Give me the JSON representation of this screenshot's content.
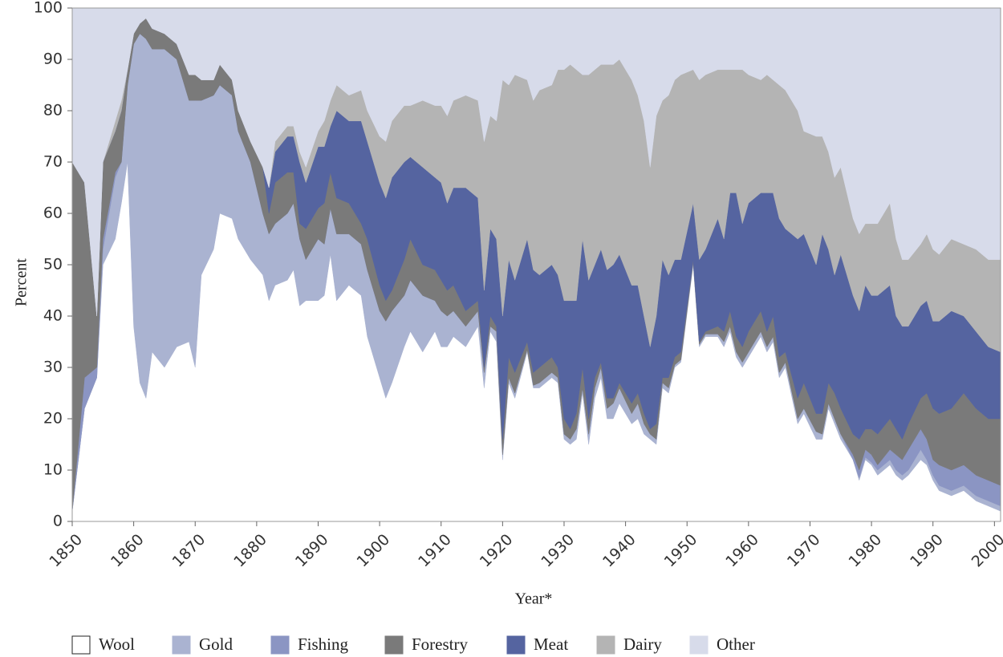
{
  "chart_data": {
    "type": "stacked_area",
    "x_label": "Year*",
    "y_label": "Percent",
    "x": [
      1850,
      1852,
      1854,
      1855,
      1857,
      1858,
      1859,
      1860,
      1861,
      1862,
      1863,
      1865,
      1867,
      1869,
      1870,
      1871,
      1873,
      1874,
      1876,
      1877,
      1879,
      1881,
      1882,
      1883,
      1885,
      1886,
      1887,
      1888,
      1890,
      1891,
      1892,
      1893,
      1895,
      1897,
      1898,
      1900,
      1901,
      1902,
      1904,
      1905,
      1907,
      1909,
      1910,
      1911,
      1912,
      1914,
      1916,
      1917,
      1918,
      1919,
      1920,
      1921,
      1922,
      1924,
      1925,
      1926,
      1928,
      1929,
      1930,
      1931,
      1932,
      1933,
      1934,
      1935,
      1936,
      1937,
      1938,
      1939,
      1941,
      1942,
      1943,
      1944,
      1945,
      1946,
      1947,
      1948,
      1949,
      1951,
      1952,
      1953,
      1955,
      1956,
      1957,
      1958,
      1959,
      1960,
      1962,
      1963,
      1964,
      1965,
      1966,
      1968,
      1969,
      1971,
      1972,
      1973,
      1974,
      1975,
      1977,
      1978,
      1979,
      1980,
      1981,
      1983,
      1984,
      1985,
      1986,
      1988,
      1989,
      1990,
      1991,
      1993,
      1995,
      1997,
      1999,
      2001
    ],
    "series": [
      {
        "name": "Wool",
        "color": "#ffffff",
        "values": [
          2,
          22,
          28,
          50,
          55,
          62,
          70,
          38,
          27,
          24,
          33,
          30,
          34,
          35,
          30,
          48,
          53,
          60,
          59,
          55,
          51,
          48,
          43,
          46,
          47,
          49,
          42,
          43,
          43,
          44,
          52,
          43,
          46,
          44,
          36,
          28,
          24,
          27,
          34,
          37,
          33,
          37,
          34,
          34,
          36,
          34,
          38,
          26,
          37,
          35,
          12,
          27,
          24,
          33,
          26,
          26,
          28,
          27,
          16,
          15,
          16,
          25,
          15,
          24,
          28,
          20,
          20,
          23,
          19,
          20,
          17,
          16,
          15,
          26,
          25,
          30,
          31,
          50,
          34,
          36,
          36,
          34,
          37,
          32,
          30,
          32,
          36,
          33,
          35,
          28,
          30,
          19,
          21,
          16,
          16,
          22,
          19,
          16,
          12,
          8,
          12,
          11,
          9,
          11,
          9,
          8,
          9,
          12,
          11,
          8,
          6,
          5,
          6,
          4,
          3,
          2
        ]
      },
      {
        "name": "Gold",
        "color": "#aab3d1",
        "values": [
          0,
          0,
          0,
          3,
          12,
          8,
          15,
          55,
          68,
          70,
          59,
          62,
          56,
          47,
          52,
          34,
          30,
          25,
          24,
          21,
          19,
          12,
          13,
          12,
          13,
          13,
          13,
          8,
          12,
          10,
          9,
          13,
          10,
          10,
          13,
          13,
          15,
          14,
          10,
          10,
          11,
          6,
          7,
          6,
          5,
          4,
          3,
          3,
          1,
          2,
          1,
          1,
          1,
          0.5,
          0.5,
          1,
          1,
          1,
          1,
          1,
          2,
          1,
          2,
          2,
          2,
          2,
          3,
          3,
          2,
          3,
          2,
          1,
          1,
          1,
          1,
          0.5,
          0.5,
          0.5,
          0.5,
          0.5,
          0.5,
          1,
          1,
          1,
          1,
          1,
          1,
          1,
          1,
          1,
          1,
          1,
          1,
          1.5,
          1,
          1,
          1,
          1,
          0,
          0.5,
          0.5,
          0.5,
          1,
          1,
          1,
          1,
          1,
          2,
          1,
          1,
          1,
          1,
          1,
          1,
          1,
          1
        ]
      },
      {
        "name": "Fishing",
        "color": "#8b95c3",
        "values": [
          0,
          6,
          2,
          2,
          1,
          0,
          0,
          0,
          0,
          0,
          0,
          0,
          0,
          0,
          0,
          0,
          0,
          0,
          0,
          0,
          0,
          0,
          0,
          0,
          0,
          0,
          0,
          0,
          0,
          0,
          0,
          0,
          0,
          0,
          0,
          0,
          0,
          0,
          0,
          0,
          0,
          0,
          0,
          0,
          0,
          0,
          0,
          0,
          0,
          0,
          0,
          0,
          0,
          0,
          0,
          0,
          0,
          0,
          0,
          0,
          0,
          0,
          0,
          0,
          0,
          0,
          0,
          0,
          0,
          0,
          0,
          0,
          0,
          0,
          0,
          0,
          0,
          0,
          0,
          0,
          0,
          0,
          0,
          0,
          0,
          0,
          0,
          0,
          0,
          0,
          0,
          0,
          0,
          0,
          0,
          0,
          0,
          0,
          1,
          1.5,
          1.5,
          1.5,
          1,
          2,
          3,
          3,
          4,
          4,
          4,
          3,
          4,
          4,
          4,
          4,
          4,
          4
        ]
      },
      {
        "name": "Forestry",
        "color": "#7a7a7a",
        "values": [
          68,
          38,
          10,
          15,
          8,
          10,
          3,
          2,
          2,
          4,
          4,
          3,
          3,
          5,
          5,
          4,
          3,
          4,
          3,
          4,
          4,
          9,
          4,
          8,
          8,
          6,
          3,
          6,
          6,
          8,
          7,
          7,
          6,
          4,
          6,
          5,
          4,
          4,
          7,
          8,
          6,
          6,
          6,
          5,
          5,
          3,
          2,
          1,
          2,
          1,
          3,
          4,
          4,
          1.5,
          2.5,
          3,
          3,
          2,
          3,
          2,
          3,
          4,
          3,
          2,
          1,
          2,
          1,
          1,
          2,
          2,
          2,
          1,
          3,
          1,
          2,
          1.5,
          1.5,
          0.5,
          0.5,
          0.5,
          1.5,
          2,
          3,
          3,
          3,
          4,
          4,
          3,
          4,
          3,
          2,
          4,
          5,
          3.5,
          4,
          4,
          5,
          5,
          4,
          6,
          4,
          5,
          6,
          6,
          5,
          4,
          5,
          6,
          9,
          10,
          10,
          12,
          14,
          13,
          12,
          13
        ]
      },
      {
        "name": "Meat",
        "color": "#5564a0",
        "values": [
          0,
          0,
          0,
          0,
          0,
          0,
          0,
          0,
          0,
          0,
          0,
          0,
          0,
          0,
          0,
          0,
          0,
          0,
          0,
          0,
          0,
          0,
          5,
          6,
          7,
          7,
          12,
          9,
          12,
          11,
          9,
          17,
          16,
          20,
          19,
          20,
          20,
          22,
          19,
          16,
          19,
          18,
          19,
          17,
          19,
          24,
          20,
          15,
          17,
          17,
          24,
          19,
          18,
          20,
          20,
          18,
          18,
          18,
          23,
          25,
          22,
          25,
          27,
          22,
          22,
          25,
          26,
          25,
          23,
          21,
          19,
          16,
          21,
          23,
          20,
          19,
          18,
          11,
          16,
          16,
          21,
          18,
          23,
          28,
          24,
          25,
          23,
          27,
          24,
          27,
          24,
          31,
          29,
          29,
          35,
          26,
          23,
          30,
          27,
          25,
          28,
          26,
          27,
          26,
          22,
          22,
          19,
          18,
          18,
          17,
          18,
          19,
          15,
          15,
          14,
          13
        ]
      },
      {
        "name": "Dairy",
        "color": "#b4b4b4",
        "values": [
          0,
          0,
          0,
          0,
          2,
          2,
          0,
          0,
          0,
          0,
          0,
          0,
          0,
          0,
          0,
          0,
          0,
          0,
          0,
          0,
          0,
          0,
          0,
          2,
          2,
          2,
          2,
          3,
          3,
          5,
          5,
          5,
          5,
          6,
          6,
          9,
          11,
          11,
          11,
          10,
          13,
          14,
          15,
          17,
          17,
          18,
          19,
          29,
          22,
          23,
          46,
          34,
          40,
          31,
          33,
          36,
          35,
          40,
          45,
          46,
          45,
          32,
          40,
          38,
          36,
          40,
          39,
          38,
          40,
          37,
          38,
          35,
          39,
          31,
          35,
          35,
          36,
          26,
          35,
          34,
          29,
          33,
          24,
          24,
          30,
          25,
          22,
          23,
          22,
          26,
          27,
          25,
          20,
          25,
          19,
          19,
          19,
          17,
          15,
          15,
          12,
          14,
          14,
          16,
          15,
          13,
          13,
          12,
          13,
          14,
          13,
          14,
          14,
          16,
          17,
          18
        ]
      },
      {
        "name": "Other",
        "color": "#d7dbea",
        "values": [
          30,
          34,
          60,
          30,
          22,
          18,
          12,
          5,
          3,
          2,
          4,
          5,
          7,
          13,
          13,
          14,
          14,
          11,
          14,
          20,
          26,
          31,
          35,
          26,
          23,
          23,
          28,
          31,
          24,
          22,
          18,
          15,
          17,
          16,
          20,
          25,
          26,
          22,
          19,
          19,
          18,
          19,
          19,
          21,
          18,
          17,
          18,
          26,
          21,
          22,
          14,
          15,
          13,
          14,
          18,
          16,
          15,
          12,
          12,
          11,
          12,
          13,
          13,
          12,
          11,
          11,
          11,
          10,
          14,
          17,
          22,
          31,
          21,
          18,
          17,
          14,
          13,
          12,
          14,
          13,
          12,
          12,
          12,
          12,
          12,
          13,
          14,
          13,
          14,
          15,
          16,
          20,
          24,
          25,
          25,
          28,
          33,
          31,
          41,
          44,
          42,
          42,
          42,
          38,
          45,
          49,
          49,
          46,
          44,
          47,
          48,
          45,
          46,
          47,
          49,
          49
        ]
      }
    ],
    "xlim": [
      1850,
      2001
    ],
    "xticks": [
      1850,
      1860,
      1870,
      1880,
      1890,
      1900,
      1910,
      1920,
      1930,
      1940,
      1950,
      1960,
      1970,
      1980,
      1990,
      2000
    ],
    "ylim": [
      0,
      100
    ],
    "yticks": [
      0,
      10,
      20,
      30,
      40,
      50,
      60,
      70,
      80,
      90,
      100
    ],
    "legend": "bottom"
  }
}
